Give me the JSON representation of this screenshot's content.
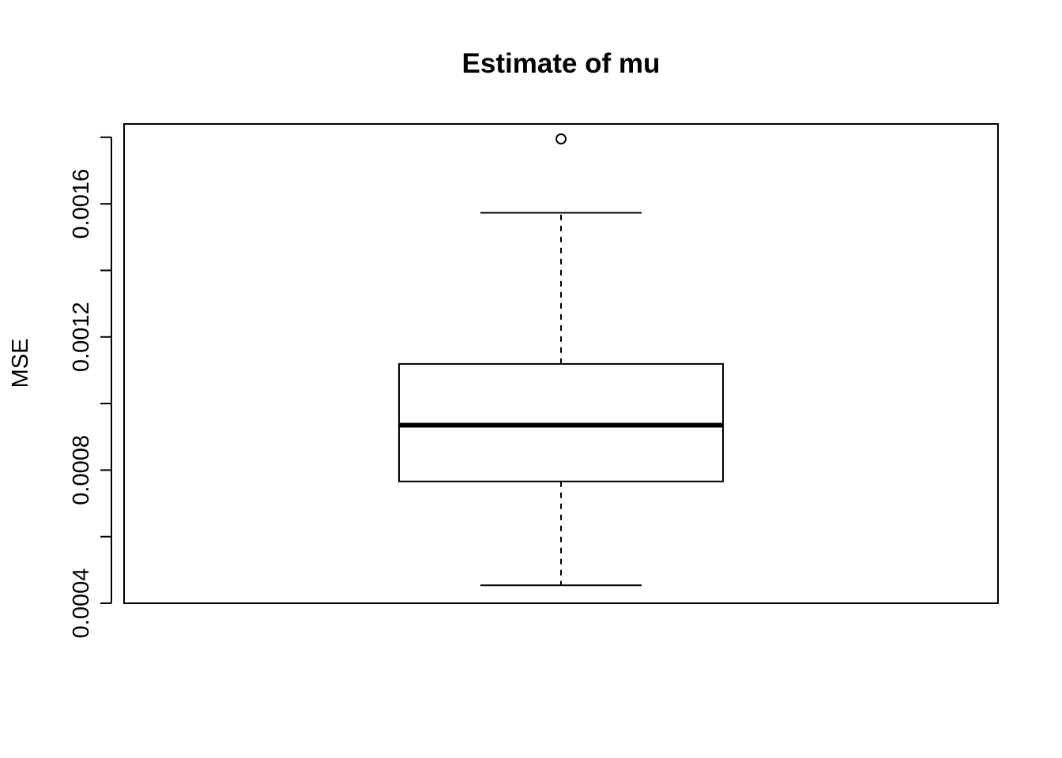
{
  "chart_data": {
    "type": "boxplot",
    "title": "Estimate of mu",
    "xlabel": "",
    "ylabel": "MSE",
    "ylim": [
      0.0004,
      0.00184
    ],
    "y_ticks": [
      0.0004,
      0.0006,
      0.0008,
      0.001,
      0.0012,
      0.0014,
      0.0016,
      0.0018
    ],
    "y_tick_labels": [
      "0.0004",
      "",
      "0.0008",
      "",
      "0.0012",
      "",
      "0.0016",
      ""
    ],
    "grid": false,
    "legend": "none",
    "boxes": [
      {
        "whisker_low": 0.000454,
        "q1": 0.000766,
        "median": 0.000935,
        "q3": 0.001119,
        "whisker_high": 0.001573,
        "outliers": [
          0.001795
        ]
      }
    ]
  }
}
